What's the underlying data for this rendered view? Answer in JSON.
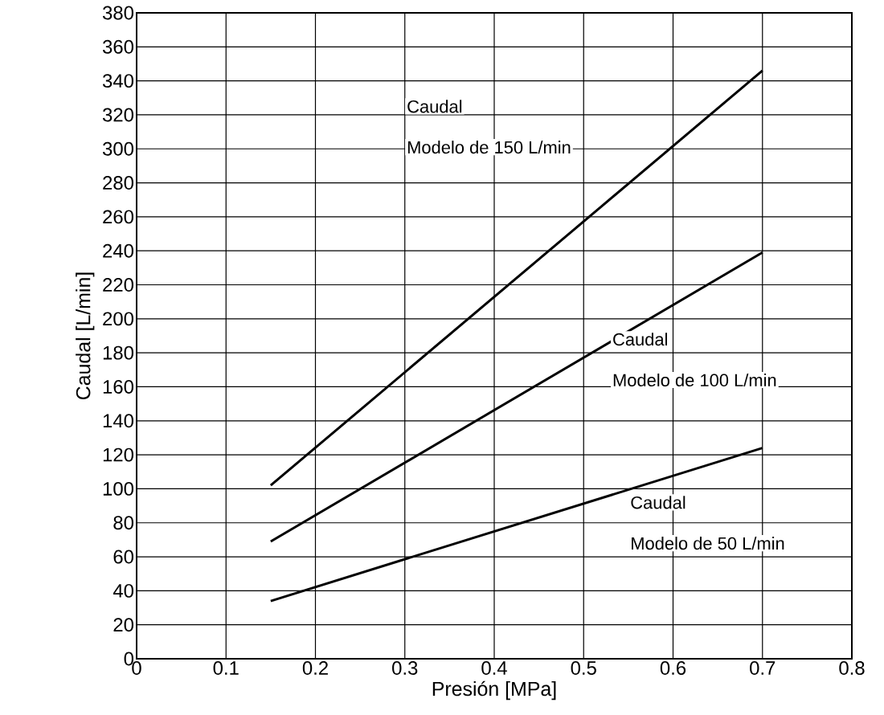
{
  "chart_data": {
    "type": "line",
    "xlabel": "Presión [MPa]",
    "ylabel": "Caudal [L/min]",
    "x": [
      0.15,
      0.7
    ],
    "series": [
      {
        "values": [
          102,
          346
        ],
        "color": "#000000"
      },
      {
        "values": [
          69,
          239
        ],
        "color": "#000000"
      },
      {
        "values": [
          34,
          124
        ],
        "color": "#000000"
      }
    ],
    "annotations": [
      "Caudal",
      "Modelo de 150 L/min",
      "Caudal",
      "Modelo de 100 L/min",
      "Caudal",
      "Modelo de 50 L/min"
    ],
    "xlim": [
      0,
      0.8
    ],
    "xticks": [
      0,
      0.1,
      0.2,
      0.3,
      0.4,
      0.5,
      0.6,
      0.7,
      0.8
    ],
    "ylim": [
      0,
      380
    ],
    "yticks": [
      0,
      20,
      40,
      60,
      80,
      100,
      120,
      140,
      160,
      180,
      200,
      220,
      240,
      260,
      280,
      300,
      320,
      340,
      360,
      380
    ],
    "grid": true,
    "marker": "none",
    "line_style": "solid"
  }
}
